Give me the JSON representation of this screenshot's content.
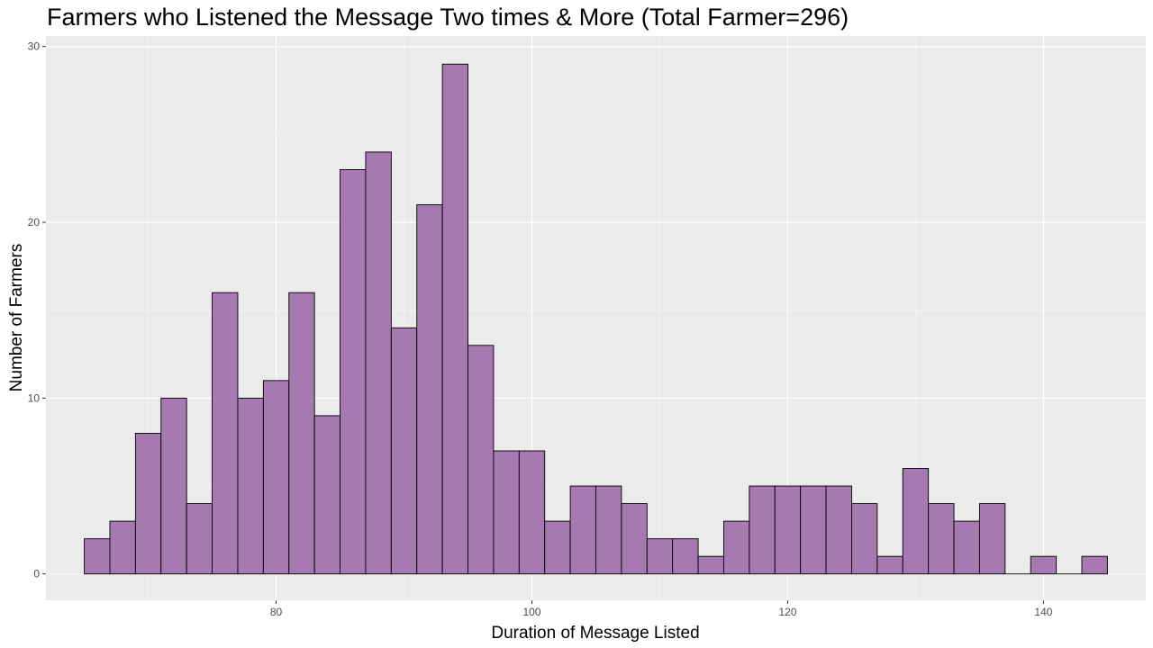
{
  "chart_data": {
    "type": "bar",
    "title": "Farmers who Listened the Message Two times & More (Total Farmer=296)",
    "xlabel": "Duration of Message Listed",
    "ylabel": "Number of Farmers",
    "x_start": 65,
    "bin_width": 2,
    "values": [
      2,
      3,
      8,
      10,
      4,
      16,
      10,
      11,
      16,
      9,
      23,
      24,
      14,
      21,
      29,
      13,
      7,
      7,
      3,
      5,
      5,
      4,
      2,
      2,
      1,
      3,
      5,
      5,
      5,
      5,
      4,
      1,
      6,
      4,
      3,
      4,
      0,
      1,
      0,
      1
    ],
    "xlim": [
      62,
      148
    ],
    "ylim": [
      -1.5,
      30.6
    ],
    "x_ticks": [
      80,
      100,
      120,
      140
    ],
    "y_ticks": [
      0,
      10,
      20,
      30
    ],
    "fill_color": "#a679b0",
    "edge_color": "#000000",
    "panel_color": "#ebebeb",
    "grid": true
  }
}
